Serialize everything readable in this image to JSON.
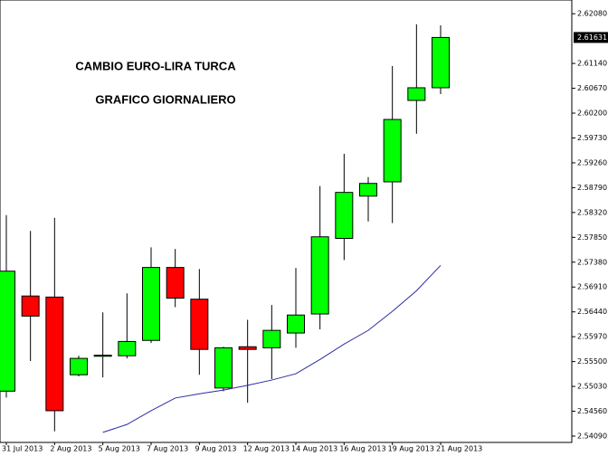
{
  "chart_data": {
    "type": "candlestick",
    "annotations": [
      "CAMBIO EURO-LIRA TURCA",
      "GRAFICO GIORNALIERO"
    ],
    "categories": [
      "31 Jul 2013",
      null,
      "2 Aug 2013",
      null,
      "5 Aug 2013",
      null,
      "7 Aug 2013",
      null,
      "9 Aug 2013",
      null,
      "12 Aug 2013",
      null,
      "14 Aug 2013",
      null,
      "16 Aug 2013",
      null,
      "19 Aug 2013",
      null,
      "21 Aug 2013"
    ],
    "open": [
      2.5494,
      2.5674,
      2.5672,
      2.5525,
      2.556,
      2.5561,
      2.559,
      2.5728,
      2.5668,
      2.55,
      2.5578,
      2.5576,
      2.5604,
      2.564,
      2.5783,
      2.5863,
      2.589,
      2.6044,
      2.6068
    ],
    "high": [
      2.5827,
      2.5797,
      2.5822,
      2.5561,
      2.5643,
      2.5679,
      2.5766,
      2.5763,
      2.5725,
      2.5578,
      2.5629,
      2.5657,
      2.5727,
      2.5882,
      2.5943,
      2.5899,
      2.6109,
      2.6188,
      2.6186
    ],
    "low": [
      2.5482,
      2.5551,
      2.5418,
      2.5522,
      2.552,
      2.5556,
      2.5585,
      2.5653,
      2.5525,
      2.5494,
      2.5472,
      2.5517,
      2.5576,
      2.5611,
      2.5742,
      2.5815,
      2.5812,
      2.5981,
      2.6056
    ],
    "close": [
      2.5721,
      2.5636,
      2.5457,
      2.5556,
      2.5562,
      2.5588,
      2.5728,
      2.567,
      2.5573,
      2.5576,
      2.5573,
      2.5609,
      2.5638,
      2.5786,
      2.587,
      2.5887,
      2.6008,
      2.6068,
      2.61631
    ],
    "up_color": "#00ff00",
    "down_color": "#ff0000",
    "lines": [
      {
        "color": "#2b2b9e",
        "values": [
          null,
          null,
          null,
          null,
          2.5416,
          2.5431,
          2.5457,
          2.5481,
          2.5489,
          2.5496,
          2.5505,
          2.5515,
          2.5527,
          2.5554,
          2.5583,
          2.5609,
          2.5645,
          2.5684,
          2.5732
        ]
      }
    ],
    "last_price": 2.61631,
    "ylim": [
      2.5397,
      2.6234
    ],
    "yticks": [
      {
        "value": 2.6208,
        "label": "2.62080"
      },
      {
        "value": 2.6114,
        "label": "2.61140"
      },
      {
        "value": 2.6067,
        "label": "2.60670"
      },
      {
        "value": 2.602,
        "label": "2.60200"
      },
      {
        "value": 2.5973,
        "label": "2.59730"
      },
      {
        "value": 2.5926,
        "label": "2.59260"
      },
      {
        "value": 2.5879,
        "label": "2.58790"
      },
      {
        "value": 2.5832,
        "label": "2.58320"
      },
      {
        "value": 2.5785,
        "label": "2.57850"
      },
      {
        "value": 2.5738,
        "label": "2.57380"
      },
      {
        "value": 2.5691,
        "label": "2.56910"
      },
      {
        "value": 2.5644,
        "label": "2.56440"
      },
      {
        "value": 2.5597,
        "label": "2.55970"
      },
      {
        "value": 2.555,
        "label": "2.55500"
      },
      {
        "value": 2.5503,
        "label": "2.55030"
      },
      {
        "value": 2.5456,
        "label": "2.54560"
      },
      {
        "value": 2.5409,
        "label": "2.54090"
      }
    ]
  }
}
